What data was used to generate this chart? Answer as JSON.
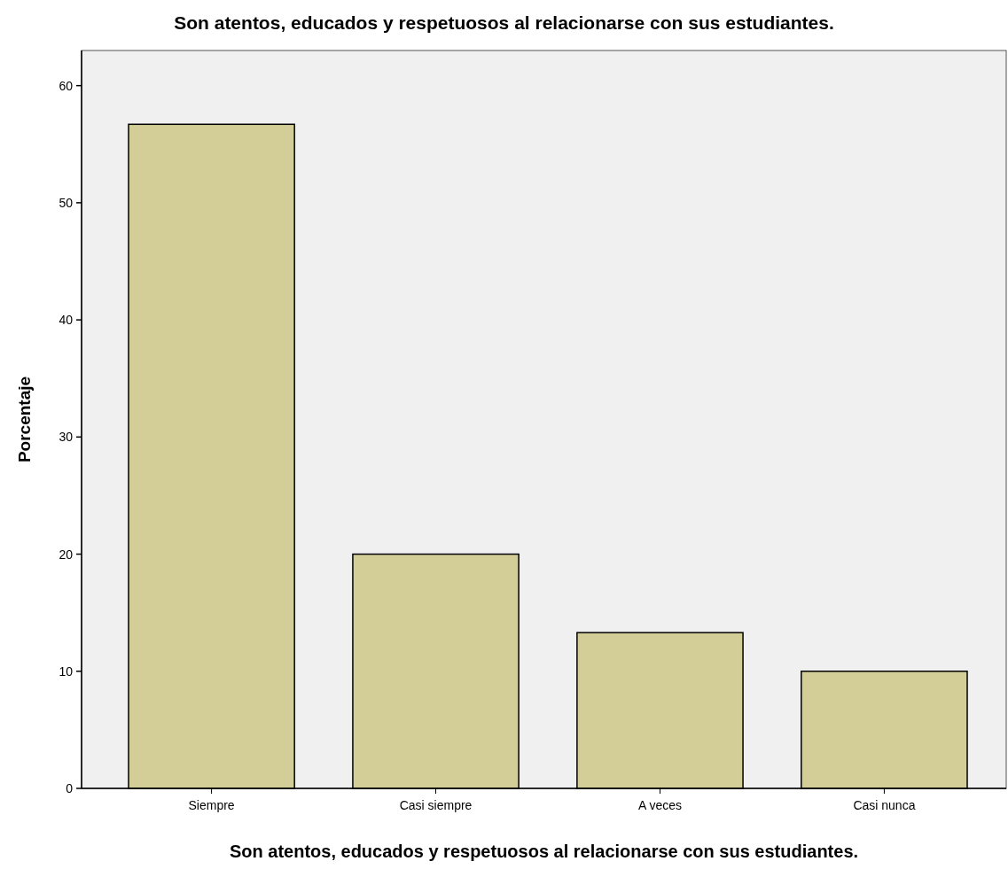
{
  "chart_data": {
    "type": "bar",
    "title": "Son atentos, educados y respetuosos al relacionarse con sus estudiantes.",
    "xlabel": "Son atentos, educados y respetuosos al relacionarse con sus estudiantes.",
    "ylabel": "Porcentaje",
    "categories": [
      "Siempre",
      "Casi siempre",
      "A veces",
      "Casi nunca"
    ],
    "values": [
      56.7,
      20,
      13.3,
      10
    ],
    "color": "#d3ce97",
    "ylim": [
      0,
      63
    ],
    "yticks": [
      0,
      10,
      20,
      30,
      40,
      50,
      60
    ],
    "grid": false
  }
}
